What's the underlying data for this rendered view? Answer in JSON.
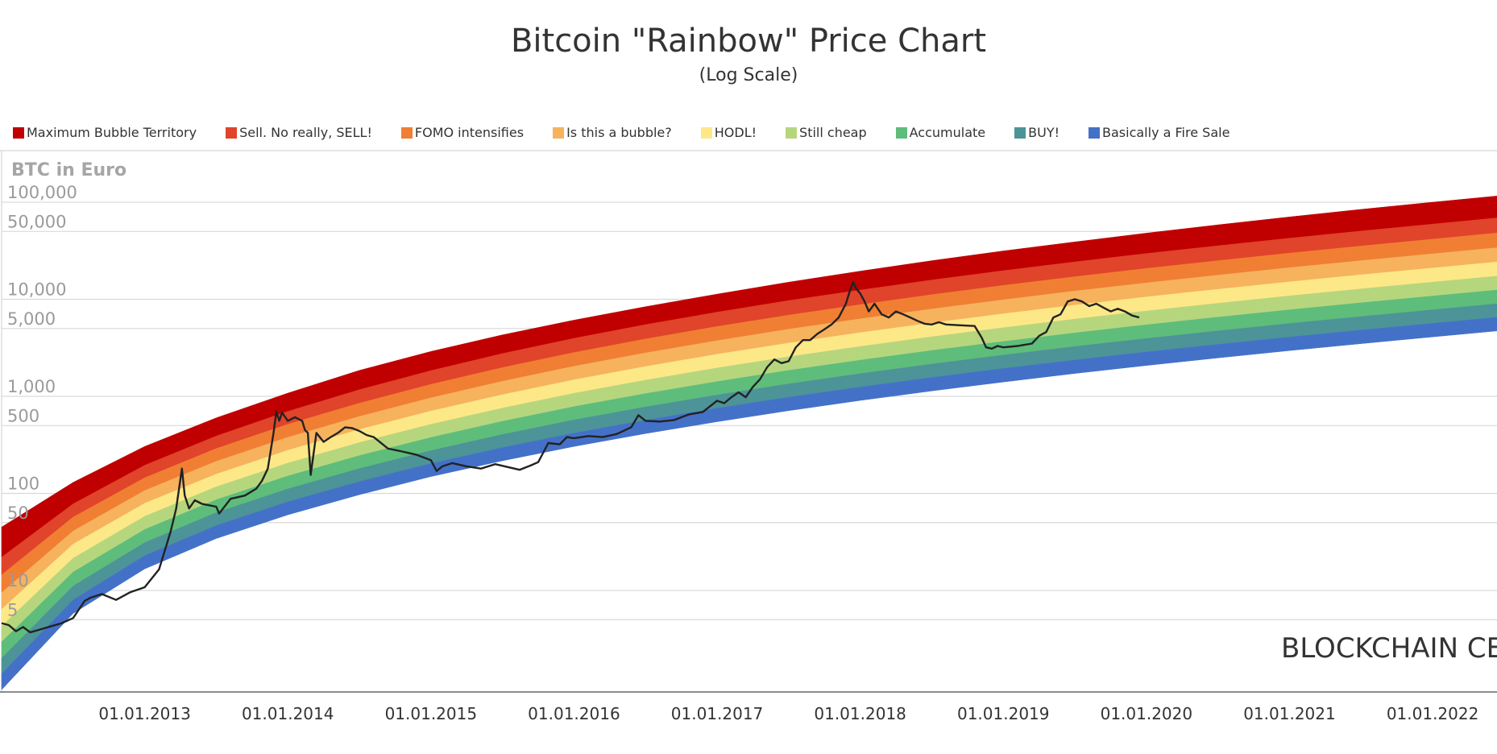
{
  "chart_data": {
    "type": "line",
    "title": "Bitcoin \"Rainbow\" Price Chart",
    "subtitle": "(Log Scale)",
    "ylabel": "BTC in Euro",
    "xlabel": "",
    "yscale": "log",
    "ylim": [
      0.9,
      340000
    ],
    "xlim": [
      2012.0,
      2022.45
    ],
    "x_ticks": [
      {
        "label": "01.01.2013",
        "value": 2013
      },
      {
        "label": "01.01.2014",
        "value": 2014
      },
      {
        "label": "01.01.2015",
        "value": 2015
      },
      {
        "label": "01.01.2016",
        "value": 2016
      },
      {
        "label": "01.01.2017",
        "value": 2017
      },
      {
        "label": "01.01.2018",
        "value": 2018
      },
      {
        "label": "01.01.2019",
        "value": 2019
      },
      {
        "label": "01.01.2020",
        "value": 2020
      },
      {
        "label": "01.01.2021",
        "value": 2021
      },
      {
        "label": "01.01.2022",
        "value": 2022
      }
    ],
    "y_ticks": [
      {
        "label": "100,000",
        "value": 100000
      },
      {
        "label": "50,000",
        "value": 50000
      },
      {
        "label": "10,000",
        "value": 10000
      },
      {
        "label": "5,000",
        "value": 5000
      },
      {
        "label": "1,000",
        "value": 1000
      },
      {
        "label": "500",
        "value": 500
      },
      {
        "label": "100",
        "value": 100
      },
      {
        "label": "50",
        "value": 50
      },
      {
        "label": "10",
        "value": 10
      },
      {
        "label": "5",
        "value": 5
      }
    ],
    "band_x": [
      2012.0,
      2012.5,
      2013.0,
      2013.5,
      2014.0,
      2014.5,
      2015.0,
      2015.5,
      2016.0,
      2016.5,
      2017.0,
      2017.5,
      2018.0,
      2018.5,
      2019.0,
      2019.5,
      2020.0,
      2020.5,
      2021.0,
      2021.5,
      2022.0,
      2022.45
    ],
    "bands": [
      {
        "name": "Maximum Bubble Territory",
        "color": "#c00000",
        "upper": [
          45,
          130,
          305,
          600,
          1080,
          1850,
          2900,
          4300,
          6100,
          8400,
          11300,
          15000,
          19500,
          25000,
          31500,
          39000,
          48000,
          58500,
          70500,
          84500,
          100000,
          116000
        ],
        "lower": [
          22,
          78,
          195,
          390,
          700,
          1170,
          1840,
          2760,
          3960,
          5480,
          7370,
          9700,
          12450,
          15800,
          19700,
          24300,
          29600,
          35600,
          42600,
          50500,
          59500,
          69000
        ]
      },
      {
        "name": "Sell. No really, SELL!",
        "color": "#e0442a",
        "upper": [
          22,
          78,
          195,
          390,
          700,
          1170,
          1840,
          2760,
          3960,
          5480,
          7370,
          9700,
          12450,
          15800,
          19700,
          24300,
          29600,
          35600,
          42600,
          50500,
          59500,
          69000
        ],
        "lower": [
          14.5,
          57,
          145,
          290,
          515,
          850,
          1330,
          1980,
          2830,
          3900,
          5240,
          6870,
          8810,
          11150,
          13900,
          17100,
          20800,
          25000,
          29900,
          35400,
          41600,
          48200
        ]
      },
      {
        "name": "FOMO intensifies",
        "color": "#f07f33",
        "upper": [
          14.5,
          57,
          145,
          290,
          515,
          850,
          1330,
          1980,
          2830,
          3900,
          5240,
          6870,
          8810,
          11150,
          13900,
          17100,
          20800,
          25000,
          29900,
          35400,
          41600,
          48200
        ],
        "lower": [
          9.5,
          41,
          107,
          214,
          378,
          620,
          965,
          1430,
          2040,
          2800,
          3750,
          4910,
          6290,
          7940,
          9880,
          12150,
          14750,
          17720,
          21150,
          25000,
          29400,
          34000
        ]
      },
      {
        "name": "Is this a bubble?",
        "color": "#f7b25e",
        "upper": [
          9.5,
          41,
          107,
          214,
          378,
          620,
          965,
          1430,
          2040,
          2800,
          3750,
          4910,
          6290,
          7940,
          9880,
          12150,
          14750,
          17720,
          21150,
          25000,
          29400,
          34000
        ],
        "lower": [
          6.4,
          30,
          79,
          158,
          278,
          455,
          705,
          1040,
          1480,
          2030,
          2710,
          3540,
          4530,
          5710,
          7090,
          8710,
          10570,
          12680,
          15120,
          17870,
          20990,
          24250
        ]
      },
      {
        "name": "HODL!",
        "color": "#fde888",
        "upper": [
          6.4,
          30,
          79,
          158,
          278,
          455,
          705,
          1040,
          1480,
          2030,
          2710,
          3540,
          4530,
          5710,
          7090,
          8710,
          10570,
          12680,
          15120,
          17870,
          20990,
          24250
        ],
        "lower": [
          4.3,
          21.5,
          58,
          117,
          205,
          334,
          515,
          757,
          1075,
          1470,
          1960,
          2555,
          3265,
          4110,
          5100,
          6255,
          7585,
          9095,
          10840,
          12800,
          15030,
          17360
        ]
      },
      {
        "name": "Still cheap",
        "color": "#b6d67e",
        "upper": [
          4.3,
          21.5,
          58,
          117,
          205,
          334,
          515,
          757,
          1075,
          1470,
          1960,
          2555,
          3265,
          4110,
          5100,
          6255,
          7585,
          9095,
          10840,
          12800,
          15030,
          17360
        ],
        "lower": [
          2.95,
          15.5,
          42.5,
          86,
          151,
          245,
          377,
          553,
          783,
          1068,
          1420,
          1850,
          2360,
          2965,
          3675,
          4505,
          5460,
          6540,
          7790,
          9190,
          10790,
          12460
        ]
      },
      {
        "name": "Accumulate",
        "color": "#5ebd7b",
        "upper": [
          2.95,
          15.5,
          42.5,
          86,
          151,
          245,
          377,
          553,
          783,
          1068,
          1420,
          1850,
          2360,
          2965,
          3675,
          4505,
          5460,
          6540,
          7790,
          9190,
          10790,
          12460
        ],
        "lower": [
          2.0,
          11.1,
          31.1,
          63.3,
          111,
          180,
          276,
          404,
          571,
          777,
          1032,
          1342,
          1711,
          2148,
          2660,
          3258,
          3946,
          4725,
          5625,
          6634,
          7786,
          8990
        ]
      },
      {
        "name": "BUY!",
        "color": "#4c9498",
        "upper": [
          2.0,
          11.1,
          31.1,
          63.3,
          111,
          180,
          276,
          404,
          571,
          777,
          1032,
          1342,
          1711,
          2148,
          2660,
          3258,
          3946,
          4725,
          5625,
          6634,
          7786,
          8990
        ],
        "lower": [
          1.38,
          8.0,
          22.8,
          46.6,
          81.8,
          132,
          203,
          296,
          417,
          567,
          752,
          977,
          1245,
          1562,
          1933,
          2366,
          2864,
          3428,
          4079,
          4809,
          5642,
          6512
        ]
      },
      {
        "name": "Basically a Fire Sale",
        "color": "#4471c8",
        "upper": [
          1.38,
          8.0,
          22.8,
          46.6,
          81.8,
          132,
          203,
          296,
          417,
          567,
          752,
          977,
          1245,
          1562,
          1933,
          2366,
          2864,
          3428,
          4079,
          4809,
          5642,
          6512
        ],
        "lower": [
          0.95,
          5.8,
          16.7,
          34.3,
          60.2,
          97,
          149,
          217,
          305,
          414,
          548,
          712,
          907,
          1137,
          1406,
          1720,
          2081,
          2490,
          2962,
          3491,
          4095,
          4725
        ]
      }
    ],
    "price_series": {
      "name": "BTC in Euro",
      "color": "#222222",
      "x": [
        2012.0,
        2012.05,
        2012.1,
        2012.15,
        2012.2,
        2012.28,
        2012.35,
        2012.42,
        2012.5,
        2012.58,
        2012.62,
        2012.7,
        2012.8,
        2012.9,
        2013.0,
        2013.1,
        2013.18,
        2013.22,
        2013.26,
        2013.28,
        2013.31,
        2013.35,
        2013.4,
        2013.5,
        2013.52,
        2013.6,
        2013.7,
        2013.78,
        2013.82,
        2013.86,
        2013.9,
        2013.92,
        2013.94,
        2013.96,
        2014.0,
        2014.05,
        2014.1,
        2014.12,
        2014.14,
        2014.16,
        2014.2,
        2014.25,
        2014.3,
        2014.35,
        2014.4,
        2014.45,
        2014.5,
        2014.55,
        2014.6,
        2014.7,
        2014.8,
        2014.9,
        2015.0,
        2015.04,
        2015.08,
        2015.15,
        2015.25,
        2015.35,
        2015.45,
        2015.55,
        2015.62,
        2015.7,
        2015.75,
        2015.82,
        2015.9,
        2015.95,
        2016.0,
        2016.1,
        2016.2,
        2016.3,
        2016.4,
        2016.45,
        2016.5,
        2016.6,
        2016.7,
        2016.8,
        2016.9,
        2017.0,
        2017.05,
        2017.1,
        2017.15,
        2017.2,
        2017.25,
        2017.3,
        2017.35,
        2017.4,
        2017.45,
        2017.5,
        2017.55,
        2017.6,
        2017.65,
        2017.7,
        2017.75,
        2017.8,
        2017.85,
        2017.9,
        2017.93,
        2017.95,
        2017.97,
        2018.0,
        2018.03,
        2018.06,
        2018.1,
        2018.15,
        2018.2,
        2018.25,
        2018.3,
        2018.35,
        2018.4,
        2018.45,
        2018.5,
        2018.55,
        2018.6,
        2018.7,
        2018.8,
        2018.85,
        2018.88,
        2018.92,
        2018.96,
        2019.0,
        2019.1,
        2019.2,
        2019.25,
        2019.3,
        2019.35,
        2019.4,
        2019.45,
        2019.5,
        2019.55,
        2019.6,
        2019.65,
        2019.7,
        2019.75,
        2019.8,
        2019.85,
        2019.9,
        2019.95
      ],
      "y": [
        4.6,
        4.4,
        3.8,
        4.2,
        3.7,
        4.0,
        4.3,
        4.6,
        5.2,
        7.8,
        8.4,
        9.2,
        8.0,
        9.6,
        10.8,
        16.5,
        40,
        70,
        180,
        95,
        70,
        85,
        78,
        73,
        62,
        88,
        95,
        112,
        135,
        180,
        420,
        700,
        560,
        680,
        560,
        610,
        560,
        450,
        420,
        155,
        420,
        340,
        380,
        420,
        480,
        470,
        440,
        400,
        380,
        290,
        270,
        250,
        220,
        170,
        190,
        205,
        190,
        180,
        200,
        185,
        175,
        195,
        210,
        330,
        320,
        380,
        370,
        390,
        380,
        410,
        480,
        640,
        560,
        550,
        570,
        650,
        690,
        900,
        850,
        980,
        1100,
        980,
        1250,
        1500,
        2000,
        2400,
        2200,
        2300,
        3200,
        3800,
        3800,
        4400,
        4900,
        5500,
        6500,
        9000,
        12500,
        15000,
        13000,
        11500,
        9500,
        7500,
        9000,
        7000,
        6500,
        7500,
        7000,
        6500,
        6000,
        5600,
        5500,
        5800,
        5500,
        5400,
        5300,
        4000,
        3200,
        3100,
        3300,
        3200,
        3300,
        3500,
        4200,
        4600,
        6500,
        7000,
        9500,
        10000,
        9500,
        8500,
        9000,
        8200,
        7500,
        8000,
        7500,
        6800,
        6500
      ]
    },
    "watermark": "BLOCKCHAIN CENTER.NET"
  }
}
